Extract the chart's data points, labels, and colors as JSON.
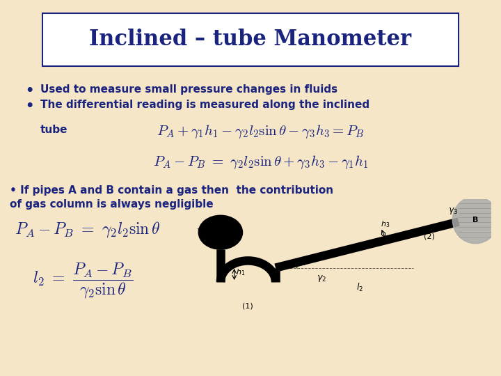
{
  "title": "Inclined – tube Manometer",
  "title_fontsize": 22,
  "title_color": "#1a237e",
  "background_color": "#f5e6c8",
  "title_box_bg": "#ffffff",
  "text_color": "#1a237e",
  "bullet1": "Used to measure small pressure changes in fluids",
  "bullet2": "The differential reading is measured along the inclined",
  "tube_label": "tube",
  "eq1": "$P_A + \\gamma_1 h_1 - \\gamma_2 l_2 \\sin\\theta - \\gamma_3 h_3 = P_B$",
  "eq2": "$P_A - P_B \\ = \\ \\gamma_2 l_2 \\sin\\theta + \\gamma_3 h_3 - \\gamma_1 h_1$",
  "bullet3": "• If pipes A and B contain a gas then  the contribution",
  "bullet3b": "of gas column is always negligible",
  "eq3": "$P_A - P_B \\ = \\ \\gamma_2 l_2 \\sin\\theta$",
  "eq4": "$l_2 \\ = \\ \\dfrac{P_A - P_B}{\\gamma_2 \\sin\\theta}$",
  "bullet_fontsize": 11,
  "eq_fontsize": 14
}
